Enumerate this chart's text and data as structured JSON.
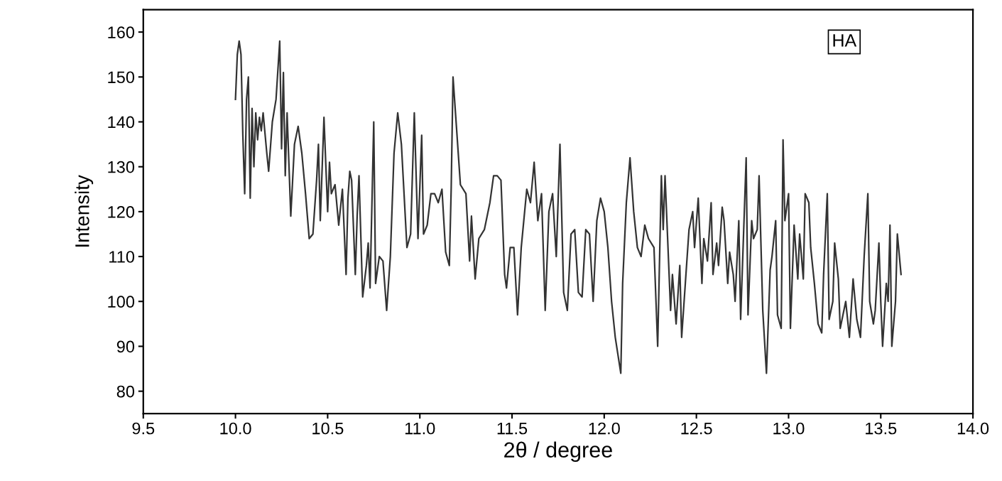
{
  "chart_data": {
    "type": "line",
    "xlabel": "2θ / degree",
    "ylabel": "Intensity",
    "annotations": [
      "HA"
    ],
    "xlim": [
      9.5,
      14.0
    ],
    "xticks": [
      {
        "value": 9.5,
        "label": "9.5"
      },
      {
        "value": 10.0,
        "label": "10.0"
      },
      {
        "value": 10.5,
        "label": "10.5"
      },
      {
        "value": 11.0,
        "label": "11.0"
      },
      {
        "value": 11.5,
        "label": "11.5"
      },
      {
        "value": 12.0,
        "label": "12.0"
      },
      {
        "value": 12.5,
        "label": "12.5"
      },
      {
        "value": 13.0,
        "label": "13.0"
      },
      {
        "value": 13.5,
        "label": "13.5"
      },
      {
        "value": 14.0,
        "label": "14.0"
      }
    ],
    "ylim": [
      75,
      165
    ],
    "yticks": [
      80,
      90,
      100,
      110,
      120,
      130,
      140,
      150,
      160
    ],
    "grid": false,
    "marker": "none",
    "line_style": "solid",
    "series": [
      {
        "color": "#333333",
        "x": [
          10.0,
          10.01,
          10.02,
          10.03,
          10.04,
          10.05,
          10.06,
          10.07,
          10.08,
          10.09,
          10.1,
          10.11,
          10.12,
          10.13,
          10.14,
          10.15,
          10.17,
          10.18,
          10.2,
          10.22,
          10.24,
          10.25,
          10.26,
          10.27,
          10.28,
          10.3,
          10.32,
          10.34,
          10.36,
          10.38,
          10.4,
          10.42,
          10.44,
          10.45,
          10.46,
          10.48,
          10.5,
          10.51,
          10.52,
          10.54,
          10.56,
          10.58,
          10.6,
          10.61,
          10.62,
          10.63,
          10.65,
          10.66,
          10.67,
          10.69,
          10.71,
          10.72,
          10.73,
          10.75,
          10.76,
          10.78,
          10.8,
          10.82,
          10.84,
          10.86,
          10.88,
          10.9,
          10.93,
          10.95,
          10.97,
          10.99,
          11.01,
          11.02,
          11.04,
          11.06,
          11.08,
          11.1,
          11.12,
          11.14,
          11.16,
          11.17,
          11.18,
          11.2,
          11.22,
          11.25,
          11.27,
          11.28,
          11.3,
          11.32,
          11.35,
          11.38,
          11.4,
          11.42,
          11.44,
          11.46,
          11.47,
          11.49,
          11.51,
          11.53,
          11.55,
          11.58,
          11.6,
          11.62,
          11.64,
          11.66,
          11.68,
          11.7,
          11.72,
          11.74,
          11.76,
          11.78,
          11.8,
          11.82,
          11.84,
          11.86,
          11.88,
          11.9,
          11.92,
          11.94,
          11.96,
          11.98,
          12.0,
          12.02,
          12.04,
          12.06,
          12.09,
          12.1,
          12.12,
          12.14,
          12.16,
          12.18,
          12.2,
          12.22,
          12.24,
          12.27,
          12.29,
          12.31,
          12.32,
          12.33,
          12.36,
          12.37,
          12.39,
          12.41,
          12.42,
          12.44,
          12.46,
          12.48,
          12.49,
          12.51,
          12.53,
          12.54,
          12.56,
          12.58,
          12.59,
          12.61,
          12.62,
          12.64,
          12.65,
          12.67,
          12.68,
          12.7,
          12.71,
          12.73,
          12.74,
          12.77,
          12.78,
          12.8,
          12.81,
          12.83,
          12.84,
          12.86,
          12.88,
          12.9,
          12.91,
          12.93,
          12.94,
          12.96,
          12.97,
          12.98,
          13.0,
          13.01,
          13.03,
          13.05,
          13.06,
          13.08,
          13.09,
          13.11,
          13.12,
          13.14,
          13.16,
          13.18,
          13.19,
          13.21,
          13.22,
          13.24,
          13.25,
          13.27,
          13.28,
          13.31,
          13.33,
          13.35,
          13.37,
          13.39,
          13.41,
          13.43,
          13.44,
          13.46,
          13.47,
          13.49,
          13.5,
          13.51,
          13.53,
          13.54,
          13.55,
          13.56,
          13.58,
          13.59,
          13.61
        ],
        "values": [
          145,
          155,
          158,
          155,
          137,
          124,
          145,
          150,
          123,
          143,
          130,
          142,
          136,
          141,
          138,
          142,
          133,
          129,
          140,
          145,
          158,
          134,
          151,
          128,
          142,
          119,
          135,
          139,
          133,
          124,
          114,
          115,
          127,
          135,
          118,
          141,
          120,
          131,
          124,
          126,
          117,
          125,
          106,
          123,
          129,
          127,
          106,
          119,
          128,
          101,
          108,
          113,
          103,
          140,
          104,
          110,
          109,
          98,
          110,
          133,
          142,
          135,
          112,
          115,
          142,
          114,
          137,
          115,
          117,
          124,
          124,
          122,
          125,
          111,
          108,
          125,
          150,
          138,
          126,
          124,
          109,
          119,
          105,
          114,
          116,
          122,
          128,
          128,
          127,
          106,
          103,
          112,
          112,
          97,
          112,
          125,
          122,
          131,
          118,
          124,
          98,
          120,
          124,
          110,
          135,
          102,
          98,
          115,
          116,
          102,
          101,
          116,
          115,
          100,
          118,
          123,
          120,
          112,
          100,
          92,
          84,
          104,
          122,
          132,
          120,
          112,
          110,
          117,
          114,
          112,
          90,
          128,
          116,
          128,
          98,
          106,
          95,
          108,
          92,
          104,
          116,
          120,
          112,
          123,
          104,
          114,
          109,
          122,
          106,
          113,
          108,
          121,
          118,
          104,
          111,
          106,
          100,
          118,
          96,
          132,
          97,
          118,
          114,
          116,
          128,
          98,
          84,
          107,
          110,
          118,
          97,
          94,
          136,
          118,
          124,
          94,
          117,
          105,
          115,
          105,
          124,
          122,
          112,
          104,
          95,
          93,
          106,
          124,
          96,
          100,
          113,
          105,
          94,
          100,
          92,
          105,
          96,
          92,
          110,
          124,
          100,
          95,
          98,
          113,
          100,
          90,
          104,
          100,
          117,
          90,
          100,
          115,
          106
        ]
      }
    ]
  }
}
